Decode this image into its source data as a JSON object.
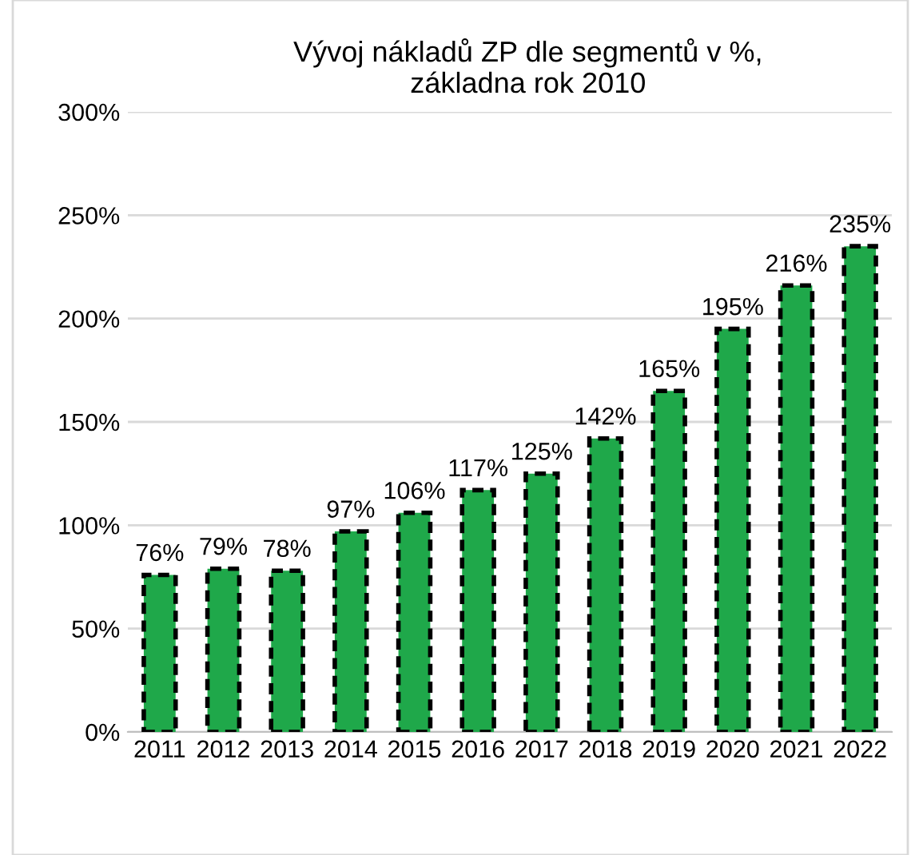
{
  "chart_data": {
    "type": "bar",
    "title": "Vývoj nákladů ZP dle segmentů v %,\nzákladna rok 2010",
    "categories": [
      "2011",
      "2012",
      "2013",
      "2014",
      "2015",
      "2016",
      "2017",
      "2018",
      "2019",
      "2020",
      "2021",
      "2022"
    ],
    "values": [
      76,
      79,
      78,
      97,
      106,
      117,
      125,
      142,
      165,
      195,
      216,
      235
    ],
    "value_labels": [
      "76%",
      "79%",
      "78%",
      "97%",
      "106%",
      "117%",
      "125%",
      "142%",
      "165%",
      "195%",
      "216%",
      "235%"
    ],
    "color": "#1fa84a",
    "ylim": [
      0,
      300
    ],
    "yticks": [
      {
        "value": 0,
        "label": "0%"
      },
      {
        "value": 50,
        "label": "50%"
      },
      {
        "value": 100,
        "label": "100%"
      },
      {
        "value": 150,
        "label": "150%"
      },
      {
        "value": 200,
        "label": "200%"
      },
      {
        "value": 250,
        "label": "250%"
      },
      {
        "value": 300,
        "label": "300%"
      }
    ],
    "grid": "y",
    "line_style": "dashed",
    "legend": false
  }
}
